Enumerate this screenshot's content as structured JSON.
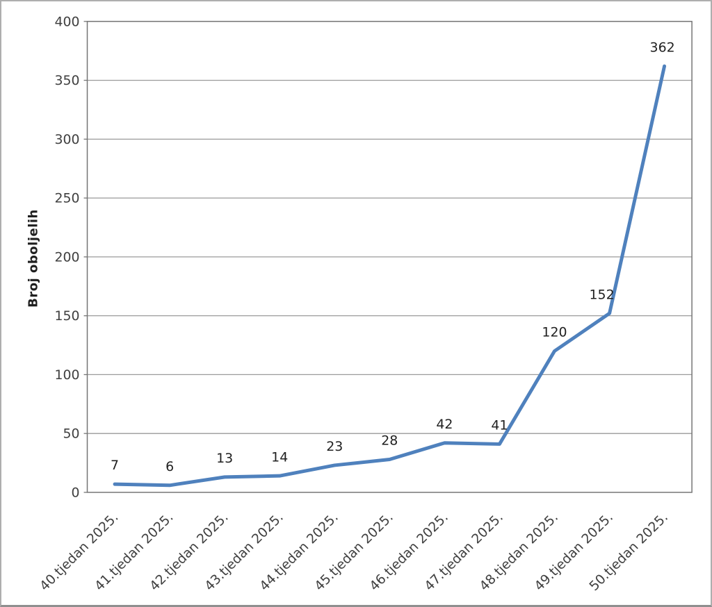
{
  "chart_data": {
    "type": "line",
    "categories": [
      "40.tjedan 2025.",
      "41.tjedan 2025.",
      "42.tjedan 2025.",
      "43.tjedan 2025.",
      "44.tjedan 2025.",
      "45.tjedan 2025.",
      "46.tjedan 2025.",
      "47.tjedan 2025.",
      "48.tjedan 2025.",
      "49.tjedan 2025.",
      "50.tjedan 2025."
    ],
    "values": [
      7,
      6,
      13,
      14,
      23,
      28,
      42,
      41,
      120,
      152,
      362
    ],
    "title": "",
    "xlabel": "",
    "ylabel": "Broj oboljelih",
    "ylim": [
      0,
      400
    ],
    "yticks": [
      0,
      50,
      100,
      150,
      200,
      250,
      300,
      350,
      400
    ],
    "grid": true,
    "legend_position": "none",
    "data_labels_shown": true,
    "colors": {
      "line": "#4f81bd",
      "gridline": "#9a9a9a",
      "plot_border": "#757575",
      "tick_text": "#404040",
      "label_text": "#1f1f1f",
      "background": "#ffffff",
      "outer_border": "#aeaeae"
    }
  }
}
